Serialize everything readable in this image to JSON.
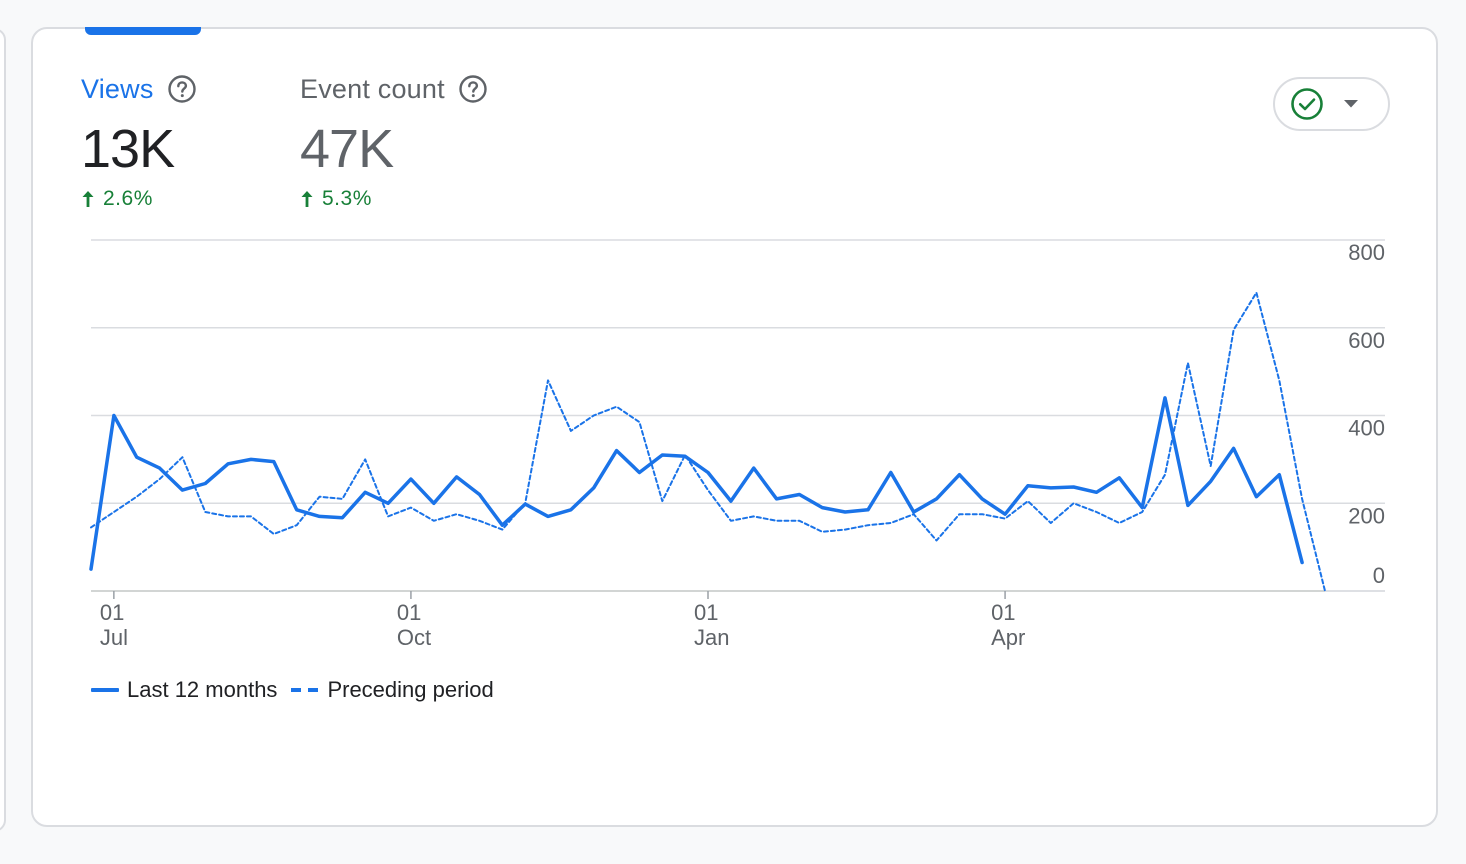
{
  "metrics": {
    "views": {
      "label": "Views",
      "value": "13K",
      "change": "2.6%"
    },
    "event_count": {
      "label": "Event count",
      "value": "47K",
      "change": "5.3%"
    }
  },
  "compare_control": {
    "icon": "check-circle-icon",
    "dropdown_icon": "arrow-drop-down-icon"
  },
  "legend": {
    "current": "Last 12 months",
    "previous": "Preceding period"
  },
  "colors": {
    "accent": "#1a73e8",
    "positive": "#188038",
    "check": "#188038",
    "grid": "#dadce0",
    "muted_text": "#5f6368"
  },
  "chart_data": {
    "type": "line",
    "title": "",
    "xlabel": "",
    "ylabel": "",
    "ylim": [
      0,
      800
    ],
    "y_ticks": [
      0,
      200,
      400,
      600,
      800
    ],
    "y_axis_position": "right",
    "x_ticks": [
      {
        "day": "01",
        "month": "Jul",
        "week": 1
      },
      {
        "day": "01",
        "month": "Oct",
        "week": 14
      },
      {
        "day": "01",
        "month": "Jan",
        "week": 27
      },
      {
        "day": "01",
        "month": "Apr",
        "week": 40
      }
    ],
    "grid": true,
    "legend_position": "bottom-left",
    "series": [
      {
        "name": "Last 12 months",
        "style": "solid",
        "values": [
          50,
          400,
          305,
          280,
          230,
          245,
          290,
          300,
          295,
          185,
          170,
          167,
          225,
          200,
          255,
          200,
          260,
          220,
          150,
          198,
          170,
          185,
          235,
          320,
          270,
          310,
          307,
          270,
          205,
          280,
          210,
          220,
          190,
          180,
          185,
          270,
          180,
          210,
          265,
          210,
          175,
          240,
          235,
          237,
          225,
          258,
          190,
          440,
          195,
          250,
          325,
          215,
          265,
          65
        ]
      },
      {
        "name": "Preceding period",
        "style": "dashed",
        "values": [
          145,
          180,
          215,
          255,
          305,
          180,
          170,
          170,
          130,
          150,
          215,
          210,
          300,
          170,
          190,
          160,
          175,
          160,
          140,
          200,
          480,
          365,
          400,
          420,
          385,
          205,
          310,
          230,
          160,
          170,
          160,
          160,
          135,
          140,
          150,
          155,
          175,
          115,
          175,
          175,
          165,
          205,
          155,
          200,
          180,
          155,
          180,
          265,
          520,
          285,
          595,
          680,
          480,
          210,
          0
        ]
      }
    ]
  }
}
